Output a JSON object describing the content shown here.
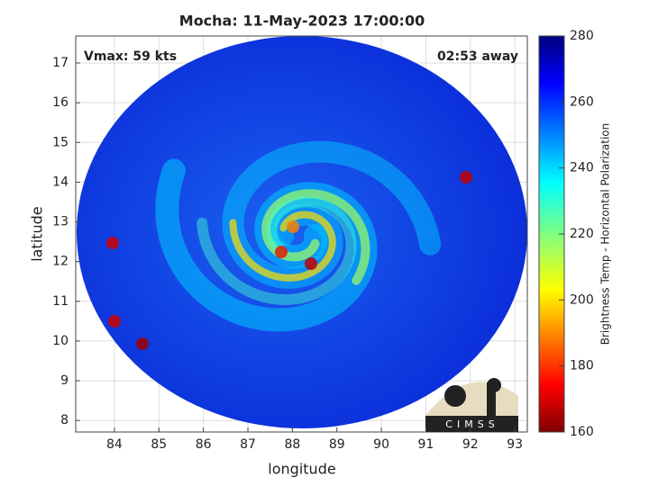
{
  "chart_data": {
    "type": "image",
    "title": "Mocha: 11-May-2023 17:00:00",
    "x_label": "longitude",
    "y_label": "latitude",
    "xlim": [
      83.13,
      93.28
    ],
    "ylim": [
      7.71,
      17.68
    ],
    "xticks": [
      84,
      85,
      86,
      87,
      88,
      89,
      90,
      91,
      92,
      93
    ],
    "yticks": [
      8,
      9,
      10,
      11,
      12,
      13,
      14,
      15,
      16,
      17
    ],
    "grid": true,
    "annotations": [
      "Vmax: 59 kts",
      "02:53 away"
    ],
    "colorbar": {
      "label": "Brightness Temp - Horizontal Polarization",
      "lim": [
        160,
        280
      ],
      "ticks": [
        160,
        180,
        200,
        220,
        240,
        260,
        280
      ]
    },
    "logo": "CIMSS"
  }
}
